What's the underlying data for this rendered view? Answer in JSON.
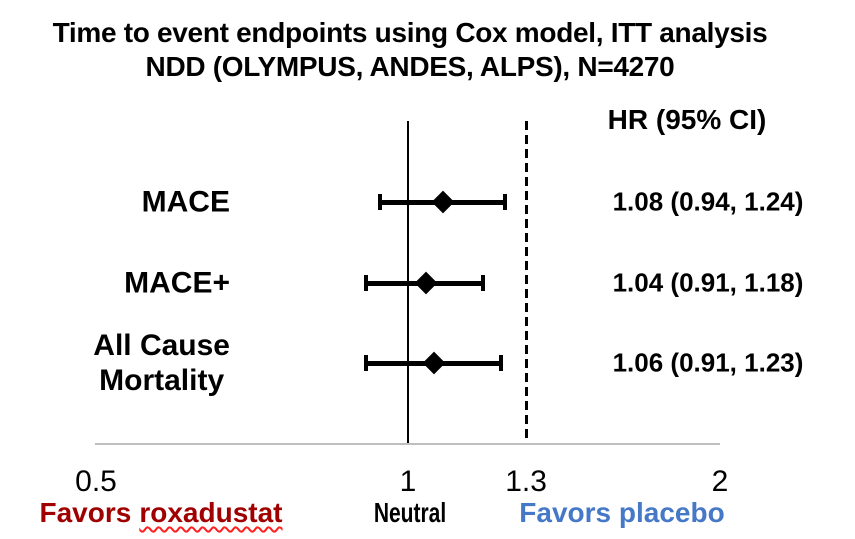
{
  "chart_data": {
    "type": "forest",
    "title_line1": "Time to event endpoints using Cox model, ITT analysis",
    "title_line2": "NDD (OLYMPUS, ANDES, ALPS), N=4270",
    "hr_header": "HR (95% CI)",
    "rows": [
      {
        "label_lines": [
          "MACE"
        ],
        "hr": 1.08,
        "ci_low": 0.94,
        "ci_high": 1.24,
        "hr_text": "1.08 (0.94, 1.24)"
      },
      {
        "label_lines": [
          "MACE+"
        ],
        "hr": 1.04,
        "ci_low": 0.91,
        "ci_high": 1.18,
        "hr_text": "1.04 (0.91, 1.18)"
      },
      {
        "label_lines": [
          "All Cause",
          "Mortality"
        ],
        "hr": 1.06,
        "ci_low": 0.91,
        "ci_high": 1.23,
        "hr_text": "1.06 (0.91, 1.23)"
      }
    ],
    "x_axis": {
      "scale": "log",
      "min": 0.5,
      "max": 2,
      "tick_values": [
        0.5,
        1,
        1.3,
        2
      ],
      "tick_labels": [
        "0.5",
        "1",
        "1.3",
        "2"
      ],
      "grid": false
    },
    "reference_lines": [
      {
        "value": 1.0,
        "style": "solid",
        "meaning": "Neutral"
      },
      {
        "value": 1.3,
        "style": "dashed"
      }
    ],
    "annotations": {
      "favors_left_prefix": "Favors",
      "favors_left_word": "roxadustat",
      "neutral": "Neutral",
      "favors_right": "Favors placebo"
    },
    "legend_position": "none"
  },
  "colors": {
    "favors_left_text": "#A00000",
    "squiggle_underline": "#FF1F1F",
    "favors_right_text": "#4678C8",
    "axis_line_gray": "#BFBFBF",
    "marker_black": "#000000"
  }
}
